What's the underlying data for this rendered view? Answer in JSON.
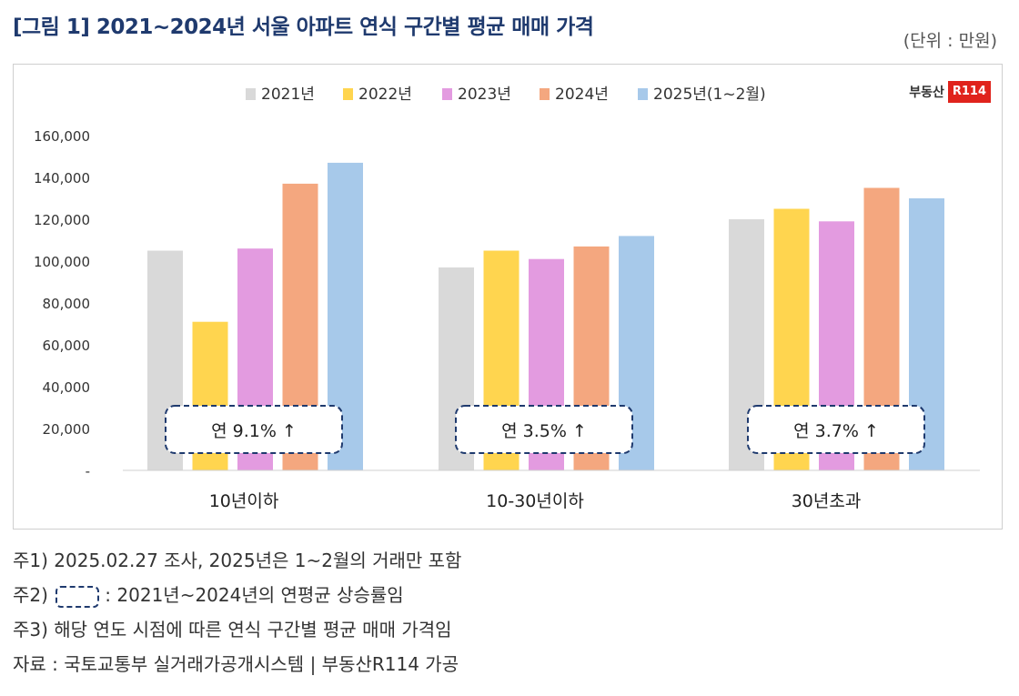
{
  "header": {
    "title": "[그림 1] 2021~2024년 서울 아파트 연식 구간별 평균 매매 가격",
    "unit": "(단위 : 만원)"
  },
  "logo": {
    "text": "부동산",
    "badge": "R114"
  },
  "colors": {
    "series": [
      "#d9d9d9",
      "#ffd54f",
      "#e39be0",
      "#f4a77f",
      "#a7c9ea"
    ],
    "box_border": "#1f3a6e"
  },
  "chart_data": {
    "type": "bar",
    "categories": [
      "10년이하",
      "10-30년이하",
      "30년초과"
    ],
    "series": [
      {
        "name": "2021년",
        "values": [
          105000,
          97000,
          120000
        ]
      },
      {
        "name": "2022년",
        "values": [
          71000,
          105000,
          125000
        ]
      },
      {
        "name": "2023년",
        "values": [
          106000,
          101000,
          119000
        ]
      },
      {
        "name": "2024년",
        "values": [
          137000,
          107000,
          135000
        ]
      },
      {
        "name": "2025년(1~2월)",
        "values": [
          147000,
          112000,
          130000
        ]
      }
    ],
    "y_ticks": [
      "-",
      "20,000",
      "40,000",
      "60,000",
      "80,000",
      "100,000",
      "120,000",
      "140,000",
      "160,000"
    ],
    "ylim": [
      0,
      160000
    ],
    "legend_position": "top",
    "grid": false,
    "annotations": [
      "연 9.1% ↑",
      "연 3.5% ↑",
      "연 3.7% ↑"
    ]
  },
  "notes": {
    "note1": "주1) 2025.02.27 조사, 2025년은 1~2월의 거래만 포함",
    "note2_prefix": "주2)",
    "note2_text": ": 2021년~2024년의 연평균 상승률임",
    "note3": "주3) 해당 연도 시점에 따른 연식 구간별 평균 매매 가격임",
    "source": "자료 : 국토교통부 실거래가공개시스템 | 부동산R114 가공"
  }
}
